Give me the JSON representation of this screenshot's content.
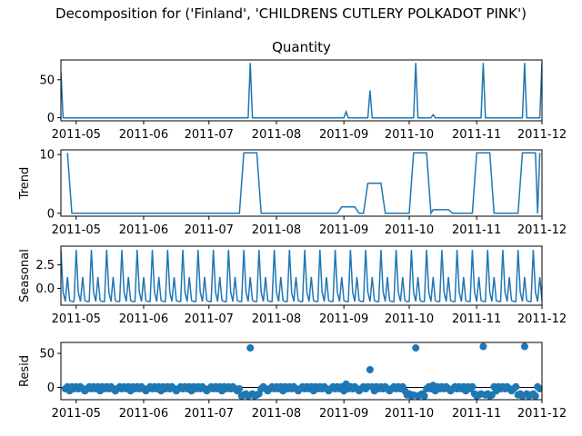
{
  "figure": {
    "title": "Decomposition for ('Finland', 'CHILDRENS CUTLERY POLKADOT PINK')"
  },
  "colors": {
    "series": "#1f77b4",
    "axis": "#000000"
  },
  "chart_data": [
    {
      "type": "line",
      "title": "Quantity",
      "ylabel": "",
      "xlim": [
        "2011-04-24",
        "2011-12-01"
      ],
      "ylim": [
        -4,
        76
      ],
      "yticks": [
        0,
        50
      ],
      "xticks": [
        "2011-05",
        "2011-06",
        "2011-07",
        "2011-08",
        "2011-09",
        "2011-10",
        "2011-11",
        "2011-12"
      ],
      "baseline": 0,
      "points": [
        {
          "x": "2011-04-24",
          "y": 60
        },
        {
          "x": "2011-07-20",
          "y": 72
        },
        {
          "x": "2011-09-02",
          "y": 8
        },
        {
          "x": "2011-09-13",
          "y": 36
        },
        {
          "x": "2011-10-04",
          "y": 72
        },
        {
          "x": "2011-10-12",
          "y": 4
        },
        {
          "x": "2011-11-04",
          "y": 72
        },
        {
          "x": "2011-11-23",
          "y": 72
        },
        {
          "x": "2011-12-01",
          "y": 72
        }
      ]
    },
    {
      "type": "line",
      "title": "",
      "ylabel": "Trend",
      "xlim": [
        "2011-04-24",
        "2011-12-01"
      ],
      "ylim": [
        -0.5,
        10.8
      ],
      "yticks": [
        0,
        10
      ],
      "xticks": [
        "2011-05",
        "2011-06",
        "2011-07",
        "2011-08",
        "2011-09",
        "2011-10",
        "2011-11",
        "2011-12"
      ],
      "x": [
        "2011-04-27",
        "2011-04-29",
        "2011-07-15",
        "2011-07-17",
        "2011-07-23",
        "2011-07-25",
        "2011-08-29",
        "2011-08-31",
        "2011-09-06",
        "2011-09-08",
        "2011-09-10",
        "2011-09-12",
        "2011-09-18",
        "2011-09-20",
        "2011-10-01",
        "2011-10-03",
        "2011-10-09",
        "2011-10-11",
        "2011-10-12",
        "2011-10-19",
        "2011-10-21",
        "2011-10-30",
        "2011-11-01",
        "2011-11-07",
        "2011-11-09",
        "2011-11-20",
        "2011-11-22",
        "2011-11-28",
        "2011-11-29",
        "2011-11-30"
      ],
      "y": [
        10.3,
        0,
        0,
        10.3,
        10.3,
        0,
        0,
        1.1,
        1.1,
        0,
        0,
        5.1,
        5.1,
        0,
        0,
        10.3,
        10.3,
        0,
        0.6,
        0.6,
        0,
        0,
        10.3,
        10.3,
        0,
        0,
        10.3,
        10.3,
        0,
        10.3
      ]
    },
    {
      "type": "line",
      "title": "",
      "ylabel": "Seasonal",
      "xlim": [
        "2011-04-24",
        "2011-12-01"
      ],
      "ylim": [
        -1.8,
        4.5
      ],
      "yticks": [
        0.0,
        2.5
      ],
      "xticks": [
        "2011-05",
        "2011-06",
        "2011-07",
        "2011-08",
        "2011-09",
        "2011-10",
        "2011-11",
        "2011-12"
      ],
      "period_days": 7,
      "start": "2011-04-24",
      "end": "2011-12-01",
      "pattern": [
        4.1,
        -0.4,
        -1.4,
        1.2,
        -1.3,
        -1.4,
        -1.4
      ]
    },
    {
      "type": "scatter",
      "title": "",
      "ylabel": "Resid",
      "xlim": [
        "2011-04-24",
        "2011-12-01"
      ],
      "ylim": [
        -18,
        66
      ],
      "yticks": [
        0,
        50
      ],
      "xticks": [
        "2011-05",
        "2011-06",
        "2011-07",
        "2011-08",
        "2011-09",
        "2011-10",
        "2011-11",
        "2011-12"
      ],
      "baseline": 0,
      "outliers": [
        {
          "x": "2011-07-20",
          "y": 58
        },
        {
          "x": "2011-09-02",
          "y": 5
        },
        {
          "x": "2011-09-13",
          "y": 26
        },
        {
          "x": "2011-10-04",
          "y": 58
        },
        {
          "x": "2011-11-04",
          "y": 60
        },
        {
          "x": "2011-11-23",
          "y": 60
        },
        {
          "x": "2011-10-12",
          "y": 3
        }
      ],
      "dip_ranges": [
        {
          "from": "2011-07-16",
          "to": "2011-07-24",
          "y": -11
        },
        {
          "from": "2011-09-30",
          "to": "2011-10-08",
          "y": -11
        },
        {
          "from": "2011-10-31",
          "to": "2011-11-08",
          "y": -11
        },
        {
          "from": "2011-11-20",
          "to": "2011-11-28",
          "y": -11
        }
      ]
    }
  ]
}
